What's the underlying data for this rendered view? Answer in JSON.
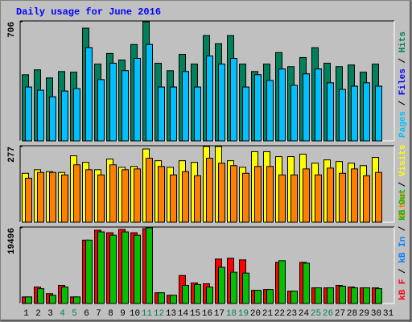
{
  "chart_data": [
    {
      "type": "bar",
      "title": "Daily usage for June 2016",
      "ylim": [
        0,
        706
      ],
      "yticks": [
        706
      ],
      "legend_reverse": true,
      "separator": "/",
      "series": [
        {
          "name": "Hits",
          "color": "#00805c",
          "values": [
            392,
            421,
            373,
            411,
            407,
            668,
            455,
            518,
            479,
            571,
            706,
            460,
            416,
            513,
            455,
            624,
            576,
            624,
            455,
            411,
            455,
            523,
            440,
            494,
            552,
            460,
            440,
            450,
            407,
            455,
            null
          ]
        },
        {
          "name": "Files",
          "color": "#0000ff",
          "values": [
            319,
            300,
            261,
            295,
            310,
            552,
            363,
            460,
            416,
            489,
            571,
            319,
            319,
            411,
            319,
            503,
            455,
            489,
            319,
            392,
            358,
            426,
            329,
            397,
            426,
            344,
            305,
            324,
            344,
            324,
            null
          ]
        },
        {
          "name": "Pages",
          "color": "#00c0ff",
          "values": [
            319,
            300,
            261,
            295,
            310,
            552,
            363,
            460,
            416,
            489,
            571,
            319,
            319,
            411,
            319,
            503,
            455,
            489,
            319,
            392,
            358,
            426,
            329,
            397,
            426,
            344,
            305,
            324,
            344,
            324,
            null
          ]
        }
      ]
    },
    {
      "type": "bar",
      "ylim": [
        0,
        277
      ],
      "yticks": [
        277
      ],
      "legend_reverse": true,
      "separator": "/",
      "series": [
        {
          "name": "Visits",
          "color": "#ffff00",
          "values": [
            179,
            192,
            185,
            182,
            243,
            219,
            192,
            231,
            201,
            204,
            268,
            225,
            201,
            225,
            219,
            277,
            277,
            225,
            201,
            258,
            258,
            240,
            240,
            249,
            216,
            228,
            222,
            216,
            207,
            237,
            null
          ]
        },
        {
          "name": "Sites",
          "color": "#ff8000",
          "values": [
            161,
            182,
            182,
            173,
            210,
            192,
            173,
            210,
            192,
            195,
            234,
            204,
            173,
            185,
            170,
            234,
            216,
            207,
            179,
            204,
            204,
            173,
            173,
            195,
            173,
            198,
            179,
            195,
            170,
            182,
            null
          ]
        }
      ]
    },
    {
      "type": "bar",
      "ylim": [
        0,
        19496
      ],
      "yticks": [
        19496
      ],
      "legend_reverse": false,
      "separator": "/",
      "categories": [
        "1",
        "2",
        "3",
        "4",
        "5",
        "6",
        "7",
        "8",
        "9",
        "10",
        "11",
        "12",
        "13",
        "14",
        "15",
        "16",
        "17",
        "18",
        "19",
        "20",
        "21",
        "22",
        "23",
        "24",
        "25",
        "26",
        "27",
        "28",
        "29",
        "30",
        "31"
      ],
      "category_colors": [
        "#000000",
        "#000000",
        "#000000",
        "#00805c",
        "#00805c",
        "#000000",
        "#000000",
        "#000000",
        "#000000",
        "#000000",
        "#00805c",
        "#00805c",
        "#000000",
        "#000000",
        "#000000",
        "#000000",
        "#000000",
        "#00805c",
        "#00805c",
        "#000000",
        "#000000",
        "#000000",
        "#000000",
        "#000000",
        "#00805c",
        "#00805c",
        "#000000",
        "#000000",
        "#000000",
        "#000000",
        "#000000"
      ],
      "series": [
        {
          "name": "kB F",
          "color": "#ff0000",
          "values": [
            1696,
            4240,
            2544,
            4664,
            1696,
            16324,
            18868,
            18232,
            19080,
            18232,
            19292,
            2756,
            2120,
            7208,
            5300,
            5088,
            11448,
            11660,
            11236,
            3392,
            3604,
            10600,
            3180,
            10600,
            4028,
            4028,
            4664,
            4240,
            4028,
            4028,
            null
          ]
        },
        {
          "name": "kB In",
          "color": "#0080ff",
          "values": [
            0,
            0,
            0,
            0,
            0,
            0,
            0,
            0,
            0,
            0,
            0,
            0,
            0,
            0,
            0,
            0,
            0,
            0,
            0,
            0,
            0,
            0,
            0,
            0,
            0,
            0,
            0,
            0,
            0,
            0,
            null
          ]
        },
        {
          "name": "kB Out",
          "color": "#00c000",
          "values": [
            1696,
            3816,
            2120,
            4240,
            1696,
            16324,
            18444,
            17596,
            18444,
            17596,
            19496,
            2756,
            2120,
            4664,
            4876,
            4240,
            9328,
            8056,
            7844,
            3392,
            3604,
            11024,
            3180,
            10388,
            4028,
            4028,
            4452,
            4028,
            4028,
            3816,
            null
          ]
        }
      ]
    }
  ]
}
